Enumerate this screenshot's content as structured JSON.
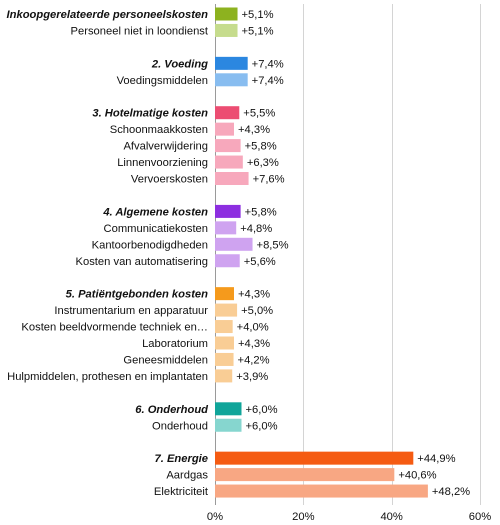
{
  "chart_data": {
    "type": "bar",
    "orientation": "horizontal",
    "xlim": [
      0,
      60
    ],
    "x_ticks": [
      {
        "value": 0,
        "label": "0%"
      },
      {
        "value": 20,
        "label": "20%"
      },
      {
        "value": 40,
        "label": "40%"
      },
      {
        "value": 60,
        "label": "60%"
      }
    ],
    "grid": true,
    "groups": [
      {
        "color": "#8db21f",
        "light_color": "#c6dc8d",
        "rows": [
          {
            "label": "Inkoopgerelateerde personeelskosten",
            "value": 5.1,
            "value_label": "+5,1%",
            "heading": true
          },
          {
            "label": "Personeel niet in loondienst",
            "value": 5.1,
            "value_label": "+5,1%",
            "heading": false
          }
        ]
      },
      {
        "color": "#2b87e0",
        "light_color": "#88bdf0",
        "rows": [
          {
            "label": "2. Voeding",
            "value": 7.4,
            "value_label": "+7,4%",
            "heading": true
          },
          {
            "label": "Voedingsmiddelen",
            "value": 7.4,
            "value_label": "+7,4%",
            "heading": false
          }
        ]
      },
      {
        "color": "#ec4d72",
        "light_color": "#f7a8bc",
        "rows": [
          {
            "label": "3. Hotelmatige kosten",
            "value": 5.5,
            "value_label": "+5,5%",
            "heading": true
          },
          {
            "label": "Schoonmaakkosten",
            "value": 4.3,
            "value_label": "+4,3%",
            "heading": false
          },
          {
            "label": "Afvalverwijdering",
            "value": 5.8,
            "value_label": "+5,8%",
            "heading": false
          },
          {
            "label": "Linnenvoorziening",
            "value": 6.3,
            "value_label": "+6,3%",
            "heading": false
          },
          {
            "label": "Vervoerskosten",
            "value": 7.6,
            "value_label": "+7,6%",
            "heading": false
          }
        ]
      },
      {
        "color": "#8d2fe0",
        "light_color": "#cfa3f0",
        "rows": [
          {
            "label": "4. Algemene kosten",
            "value": 5.8,
            "value_label": "+5,8%",
            "heading": true
          },
          {
            "label": "Communicatiekosten",
            "value": 4.8,
            "value_label": "+4,8%",
            "heading": false
          },
          {
            "label": "Kantoorbenodigdheden",
            "value": 8.5,
            "value_label": "+8,5%",
            "heading": false
          },
          {
            "label": "Kosten van automatisering",
            "value": 5.6,
            "value_label": "+5,6%",
            "heading": false
          }
        ]
      },
      {
        "color": "#f59a1c",
        "light_color": "#f9cd95",
        "rows": [
          {
            "label": "5. Patiëntgebonden kosten",
            "value": 4.3,
            "value_label": "+4,3%",
            "heading": true
          },
          {
            "label": "Instrumentarium en apparatuur",
            "value": 5.0,
            "value_label": "+5,0%",
            "heading": false
          },
          {
            "label": "Kosten beeldvormende techniek en…",
            "value": 4.0,
            "value_label": "+4,0%",
            "heading": false
          },
          {
            "label": "Laboratorium",
            "value": 4.3,
            "value_label": "+4,3%",
            "heading": false
          },
          {
            "label": "Geneesmiddelen",
            "value": 4.2,
            "value_label": "+4,2%",
            "heading": false
          },
          {
            "label": "Hulpmiddelen, prothesen en implantaten",
            "value": 3.9,
            "value_label": "+3,9%",
            "heading": false
          }
        ]
      },
      {
        "color": "#10a59a",
        "light_color": "#86d6cf",
        "rows": [
          {
            "label": "6. Onderhoud",
            "value": 6.0,
            "value_label": "+6,0%",
            "heading": true
          },
          {
            "label": "Onderhoud",
            "value": 6.0,
            "value_label": "+6,0%",
            "heading": false
          }
        ]
      },
      {
        "color": "#f55b12",
        "light_color": "#f8a783",
        "rows": [
          {
            "label": "7. Energie",
            "value": 44.9,
            "value_label": "+44,9%",
            "heading": true
          },
          {
            "label": "Aardgas",
            "value": 40.6,
            "value_label": "+40,6%",
            "heading": false
          },
          {
            "label": "Elektriciteit",
            "value": 48.2,
            "value_label": "+48,2%",
            "heading": false
          }
        ]
      }
    ]
  }
}
